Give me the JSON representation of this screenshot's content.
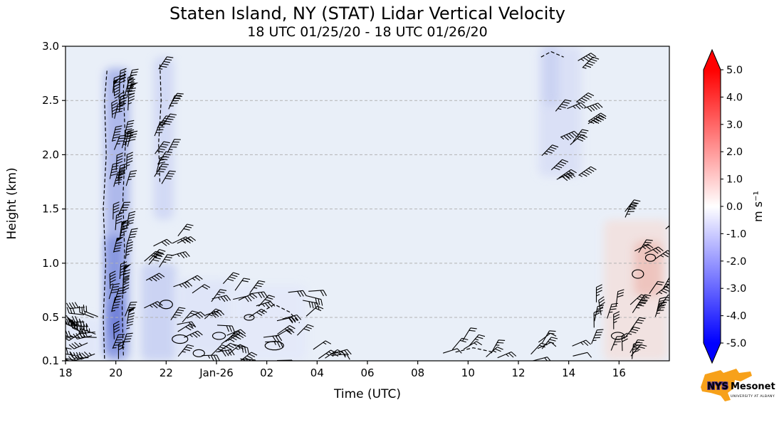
{
  "chart_data": {
    "type": "heatmap",
    "title": "Staten Island, NY (STAT) Lidar Vertical Velocity",
    "subtitle": "18 UTC 01/25/20 - 18 UTC 01/26/20",
    "xlabel": "Time (UTC)",
    "ylabel": "Height (km)",
    "plot_bg": "#e9eff8",
    "x_axis": {
      "lim": [
        18,
        42
      ],
      "unit": "hours since 18 UTC 01/25/20",
      "ticks": [
        {
          "label": "18",
          "hour": 18
        },
        {
          "label": "20",
          "hour": 20
        },
        {
          "label": "22",
          "hour": 22
        },
        {
          "label": "Jan-26",
          "hour": 24
        },
        {
          "label": "02",
          "hour": 26
        },
        {
          "label": "04",
          "hour": 28
        },
        {
          "label": "06",
          "hour": 30
        },
        {
          "label": "08",
          "hour": 32
        },
        {
          "label": "10",
          "hour": 34
        },
        {
          "label": "12",
          "hour": 36
        },
        {
          "label": "14",
          "hour": 38
        },
        {
          "label": "16",
          "hour": 40
        }
      ]
    },
    "y_axis": {
      "lim": [
        0.1,
        3.0
      ],
      "ticks": [
        {
          "label": "3.0",
          "km": 3.0
        },
        {
          "label": "2.5",
          "km": 2.5
        },
        {
          "label": "2.0",
          "km": 2.0
        },
        {
          "label": "1.5",
          "km": 1.5
        },
        {
          "label": "1.0",
          "km": 1.0
        },
        {
          "label": "0.5",
          "km": 0.5
        },
        {
          "label": "0.1",
          "km": 0.1
        }
      ]
    },
    "grid": {
      "horizontal_dashed_km": [
        0.5,
        1.0,
        1.5,
        2.0,
        2.5
      ]
    },
    "colorbar": {
      "label": "m s⁻¹",
      "min": -5.0,
      "max": 5.0,
      "color_positive": "#ff0000",
      "color_zero": "#ffffff",
      "color_negative": "#0000ff",
      "ticks": [
        {
          "label": "5.0",
          "value": 5.0
        },
        {
          "label": "4.0",
          "value": 4.0
        },
        {
          "label": "3.0",
          "value": 3.0
        },
        {
          "label": "2.0",
          "value": 2.0
        },
        {
          "label": "1.0",
          "value": 1.0
        },
        {
          "label": "0.0",
          "value": 0.0
        },
        {
          "label": "-1.0",
          "value": -1.0
        },
        {
          "label": "-2.0",
          "value": -2.0
        },
        {
          "label": "-3.0",
          "value": -3.0
        },
        {
          "label": "-4.0",
          "value": -4.0
        },
        {
          "label": "-5.0",
          "value": -5.0
        }
      ]
    },
    "shaded_regions": [
      {
        "x": [
          18.0,
          19.5
        ],
        "y": [
          0.1,
          0.5
        ],
        "color": "#dfe5f9",
        "opacity": 0.7
      },
      {
        "x": [
          19.55,
          20.55
        ],
        "y": [
          0.1,
          2.8
        ],
        "color": "#a8b4ea",
        "opacity": 0.9
      },
      {
        "x": [
          19.6,
          20.3
        ],
        "y": [
          0.15,
          1.25
        ],
        "color": "#8494df",
        "opacity": 0.9
      },
      {
        "x": [
          19.8,
          20.25
        ],
        "y": [
          0.3,
          0.65
        ],
        "color": "#6d7dd8",
        "opacity": 0.9
      },
      {
        "x": [
          21.5,
          22.3
        ],
        "y": [
          1.4,
          2.9
        ],
        "color": "#ccd4f4",
        "opacity": 0.8
      },
      {
        "x": [
          21.0,
          22.4
        ],
        "y": [
          0.1,
          1.0
        ],
        "color": "#c4cdf2",
        "opacity": 0.8
      },
      {
        "x": [
          22.4,
          24.6
        ],
        "y": [
          0.15,
          0.85
        ],
        "color": "#dde3f8",
        "opacity": 0.8
      },
      {
        "x": [
          24.6,
          27.6
        ],
        "y": [
          0.1,
          0.8
        ],
        "color": "#e2e7fa",
        "opacity": 0.7
      },
      {
        "x": [
          36.8,
          38.5
        ],
        "y": [
          1.8,
          3.0
        ],
        "color": "#d8def6",
        "opacity": 0.85
      },
      {
        "x": [
          37.0,
          37.6
        ],
        "y": [
          2.45,
          3.0
        ],
        "color": "#c8d0f2",
        "opacity": 0.85
      },
      {
        "x": [
          39.4,
          41.95
        ],
        "y": [
          0.1,
          1.4
        ],
        "color": "#f3e0dd",
        "opacity": 0.85
      },
      {
        "x": [
          40.6,
          41.7
        ],
        "y": [
          0.7,
          1.2
        ],
        "color": "#eebfb8",
        "opacity": 0.85
      }
    ],
    "wind_barb_clusters": [
      {
        "x_range": [
          18.05,
          19.45
        ],
        "y_range": [
          0.1,
          0.62
        ],
        "count": 24,
        "angle": 185,
        "angle_jitter": 30,
        "feathers": 3,
        "flags": true
      },
      {
        "x_range": [
          19.7,
          20.5
        ],
        "y_range": [
          0.1,
          2.78
        ],
        "count": 48,
        "angle": 80,
        "angle_jitter": 14,
        "feathers": 4,
        "flags": true
      },
      {
        "x_range": [
          21.5,
          22.2
        ],
        "y_range": [
          1.7,
          2.85
        ],
        "count": 12,
        "angle": 65,
        "angle_jitter": 12,
        "feathers": 4,
        "flags": false
      },
      {
        "x_range": [
          21.1,
          22.5
        ],
        "y_range": [
          0.35,
          1.3
        ],
        "count": 14,
        "angle": 35,
        "angle_jitter": 25,
        "feathers": 3,
        "flags": false
      },
      {
        "x_range": [
          22.3,
          24.6
        ],
        "y_range": [
          0.1,
          0.9
        ],
        "count": 22,
        "angle": 25,
        "angle_jitter": 30,
        "feathers": 3,
        "flags": false
      },
      {
        "x_range": [
          24.6,
          27.7
        ],
        "y_range": [
          0.08,
          0.75
        ],
        "count": 24,
        "angle": 20,
        "angle_jitter": 35,
        "feathers": 3,
        "flags": false
      },
      {
        "x_range": [
          27.8,
          29.2
        ],
        "y_range": [
          0.1,
          0.22
        ],
        "count": 5,
        "angle": 20,
        "angle_jitter": 20,
        "feathers": 2,
        "flags": false
      },
      {
        "x_range": [
          33.0,
          38.2
        ],
        "y_range": [
          0.1,
          0.32
        ],
        "count": 16,
        "angle": 40,
        "angle_jitter": 30,
        "feathers": 2,
        "flags": false
      },
      {
        "x_range": [
          36.6,
          38.8
        ],
        "y_range": [
          1.78,
          2.92
        ],
        "count": 14,
        "angle": 38,
        "angle_jitter": 18,
        "feathers": 4,
        "flags": false
      },
      {
        "x_range": [
          37.2,
          37.7
        ],
        "y_range": [
          1.75,
          1.85
        ],
        "count": 2,
        "angle": 30,
        "angle_jitter": 10,
        "feathers": 3,
        "flags": false
      },
      {
        "x_range": [
          38.9,
          40.6
        ],
        "y_range": [
          0.1,
          0.7
        ],
        "count": 15,
        "angle": 70,
        "angle_jitter": 30,
        "feathers": 3,
        "flags": false
      },
      {
        "x_range": [
          40.2,
          41.9
        ],
        "y_range": [
          0.45,
          1.5
        ],
        "count": 16,
        "angle": 55,
        "angle_jitter": 30,
        "feathers": 3,
        "flags": false
      }
    ],
    "dashed_contours": [
      [
        [
          19.55,
          0.12
        ],
        [
          19.5,
          0.5
        ],
        [
          19.6,
          1.0
        ],
        [
          19.5,
          1.5
        ],
        [
          19.62,
          2.0
        ],
        [
          19.55,
          2.5
        ],
        [
          19.65,
          2.78
        ]
      ],
      [
        [
          20.3,
          0.15
        ],
        [
          20.25,
          0.6
        ],
        [
          20.35,
          1.1
        ],
        [
          20.28,
          1.6
        ],
        [
          20.38,
          2.1
        ],
        [
          20.3,
          2.6
        ],
        [
          20.35,
          2.78
        ]
      ],
      [
        [
          21.75,
          1.75
        ],
        [
          21.7,
          2.1
        ],
        [
          21.8,
          2.5
        ],
        [
          21.75,
          2.85
        ]
      ],
      [
        [
          25.8,
          0.55
        ],
        [
          26.3,
          0.62
        ],
        [
          26.9,
          0.55
        ],
        [
          27.3,
          0.45
        ]
      ],
      [
        [
          33.5,
          0.18
        ],
        [
          34.2,
          0.22
        ],
        [
          35.0,
          0.18
        ]
      ],
      [
        [
          36.9,
          2.9
        ],
        [
          37.3,
          2.95
        ],
        [
          37.8,
          2.9
        ]
      ]
    ],
    "contour_loops": [
      {
        "x": 22.55,
        "y": 0.3,
        "rx": 11,
        "ry": 6
      },
      {
        "x": 23.3,
        "y": 0.17,
        "rx": 8,
        "ry": 5
      },
      {
        "x": 24.1,
        "y": 0.33,
        "rx": 9,
        "ry": 5
      },
      {
        "x": 25.3,
        "y": 0.5,
        "rx": 7,
        "ry": 4
      },
      {
        "x": 26.3,
        "y": 0.24,
        "rx": 13,
        "ry": 6
      },
      {
        "x": 22.0,
        "y": 0.62,
        "rx": 9,
        "ry": 6
      },
      {
        "x": 40.75,
        "y": 0.9,
        "rx": 8,
        "ry": 6
      },
      {
        "x": 41.25,
        "y": 1.05,
        "rx": 7,
        "ry": 5
      },
      {
        "x": 39.95,
        "y": 0.33,
        "rx": 9,
        "ry": 5
      }
    ]
  },
  "logo": {
    "nys": "NYS",
    "mesonet": "Mesonet",
    "subtext": "UNIVERSITY AT ALBANY",
    "orange": "#F7A11A",
    "purple": "#4b2e83"
  }
}
